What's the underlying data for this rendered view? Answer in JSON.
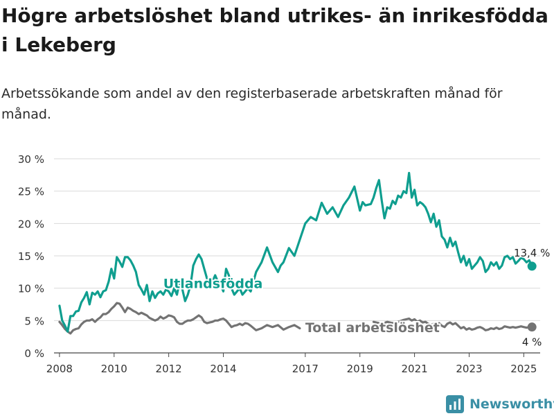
{
  "header": {
    "title": "Högre arbetslöshet bland utrikes- än inrikesfödda i Lekeberg",
    "subtitle": "Arbetssökande som andel av den registerbaserade arbetskraften månad för månad."
  },
  "brand": {
    "name": "Newsworthy",
    "icon": "newsworthy-chart-icon",
    "color": "#3a8fa5"
  },
  "chart_data": {
    "type": "line",
    "ylim": [
      0,
      30
    ],
    "xlim": [
      2007.8,
      2025.6
    ],
    "y_ticks": [
      0,
      5,
      10,
      15,
      20,
      25,
      30
    ],
    "y_tick_labels": [
      "0 %",
      "5 %",
      "10 %",
      "15 %",
      "20 %",
      "25 %",
      "30 %"
    ],
    "x_ticks": [
      2008,
      2010,
      2012,
      2014,
      2017,
      2019,
      2021,
      2023,
      2025
    ],
    "x_tick_labels": [
      "2008",
      "2010",
      "2012",
      "2014",
      "2017",
      "2019",
      "2021",
      "2023",
      "2025"
    ],
    "grid": true,
    "series": [
      {
        "name": "Utlandsfödda",
        "color": "#0f9e8f",
        "end_label": "13,4 %",
        "points": [
          [
            2008.0,
            7.3
          ],
          [
            2008.1,
            5.0
          ],
          [
            2008.2,
            4.2
          ],
          [
            2008.3,
            3.3
          ],
          [
            2008.4,
            5.7
          ],
          [
            2008.5,
            5.7
          ],
          [
            2008.6,
            6.4
          ],
          [
            2008.7,
            6.5
          ],
          [
            2008.8,
            7.8
          ],
          [
            2008.9,
            8.5
          ],
          [
            2009.0,
            9.4
          ],
          [
            2009.1,
            7.5
          ],
          [
            2009.2,
            9.3
          ],
          [
            2009.3,
            9.0
          ],
          [
            2009.4,
            9.5
          ],
          [
            2009.5,
            8.6
          ],
          [
            2009.6,
            9.5
          ],
          [
            2009.7,
            9.7
          ],
          [
            2009.8,
            11.0
          ],
          [
            2009.9,
            13.0
          ],
          [
            2010.0,
            11.5
          ],
          [
            2010.1,
            14.8
          ],
          [
            2010.2,
            14.1
          ],
          [
            2010.3,
            13.3
          ],
          [
            2010.4,
            14.8
          ],
          [
            2010.5,
            14.8
          ],
          [
            2010.6,
            14.3
          ],
          [
            2010.7,
            13.5
          ],
          [
            2010.8,
            12.5
          ],
          [
            2010.9,
            10.5
          ],
          [
            2011.0,
            9.8
          ],
          [
            2011.1,
            9.0
          ],
          [
            2011.2,
            10.5
          ],
          [
            2011.3,
            8.0
          ],
          [
            2011.4,
            9.5
          ],
          [
            2011.5,
            8.5
          ],
          [
            2011.6,
            9.2
          ],
          [
            2011.7,
            9.5
          ],
          [
            2011.8,
            9.0
          ],
          [
            2011.9,
            9.8
          ],
          [
            2012.0,
            9.5
          ],
          [
            2012.1,
            8.8
          ],
          [
            2012.2,
            10.0
          ],
          [
            2012.3,
            9.0
          ],
          [
            2012.4,
            11.0
          ],
          [
            2012.5,
            9.8
          ],
          [
            2012.6,
            8.0
          ],
          [
            2012.7,
            9.0
          ],
          [
            2012.8,
            10.5
          ],
          [
            2012.9,
            13.5
          ],
          [
            2013.0,
            14.5
          ],
          [
            2013.1,
            15.2
          ],
          [
            2013.2,
            14.5
          ],
          [
            2013.3,
            13.0
          ],
          [
            2013.4,
            11.5
          ],
          [
            2013.5,
            10.0
          ],
          [
            2013.6,
            11.0
          ],
          [
            2013.7,
            12.0
          ],
          [
            2013.8,
            11.0
          ],
          [
            2013.9,
            10.5
          ],
          [
            2014.0,
            9.5
          ],
          [
            2014.1,
            13.0
          ],
          [
            2014.2,
            12.0
          ],
          [
            2014.3,
            10.0
          ],
          [
            2014.4,
            9.0
          ],
          [
            2014.5,
            9.5
          ],
          [
            2014.6,
            10.0
          ],
          [
            2014.7,
            9.0
          ],
          [
            2014.8,
            9.5
          ],
          [
            2014.9,
            10.0
          ],
          [
            2015.0,
            9.5
          ],
          [
            2015.2,
            12.5
          ],
          [
            2015.4,
            14.0
          ],
          [
            2015.6,
            16.3
          ],
          [
            2015.8,
            14.0
          ],
          [
            2016.0,
            12.5
          ],
          [
            2016.1,
            13.5
          ],
          [
            2016.2,
            14.0
          ],
          [
            2016.4,
            16.2
          ],
          [
            2016.6,
            15.0
          ],
          [
            2016.8,
            17.5
          ],
          [
            2017.0,
            20.0
          ],
          [
            2017.2,
            21.0
          ],
          [
            2017.4,
            20.5
          ],
          [
            2017.6,
            23.2
          ],
          [
            2017.8,
            21.5
          ],
          [
            2018.0,
            22.5
          ],
          [
            2018.2,
            21.0
          ],
          [
            2018.4,
            22.8
          ],
          [
            2018.6,
            24.0
          ],
          [
            2018.8,
            25.7
          ],
          [
            2019.0,
            22.0
          ],
          [
            2019.1,
            23.3
          ],
          [
            2019.2,
            22.8
          ],
          [
            2019.4,
            23.0
          ],
          [
            2019.5,
            24.0
          ],
          [
            2019.6,
            25.5
          ],
          [
            2019.7,
            26.7
          ],
          [
            2019.8,
            23.5
          ],
          [
            2019.9,
            20.8
          ],
          [
            2020.0,
            22.5
          ],
          [
            2020.1,
            22.3
          ],
          [
            2020.2,
            23.5
          ],
          [
            2020.3,
            23.0
          ],
          [
            2020.4,
            24.3
          ],
          [
            2020.5,
            24.0
          ],
          [
            2020.6,
            25.0
          ],
          [
            2020.7,
            24.7
          ],
          [
            2020.8,
            27.8
          ],
          [
            2020.9,
            24.0
          ],
          [
            2021.0,
            25.2
          ],
          [
            2021.1,
            22.8
          ],
          [
            2021.2,
            23.3
          ],
          [
            2021.3,
            23.0
          ],
          [
            2021.4,
            22.5
          ],
          [
            2021.5,
            21.5
          ],
          [
            2021.6,
            20.2
          ],
          [
            2021.7,
            21.5
          ],
          [
            2021.8,
            19.5
          ],
          [
            2021.9,
            20.5
          ],
          [
            2022.0,
            18.0
          ],
          [
            2022.1,
            17.5
          ],
          [
            2022.2,
            16.3
          ],
          [
            2022.3,
            17.8
          ],
          [
            2022.4,
            16.5
          ],
          [
            2022.5,
            17.2
          ],
          [
            2022.6,
            15.5
          ],
          [
            2022.7,
            14.0
          ],
          [
            2022.8,
            15.0
          ],
          [
            2022.9,
            13.5
          ],
          [
            2023.0,
            14.5
          ],
          [
            2023.1,
            13.0
          ],
          [
            2023.2,
            13.5
          ],
          [
            2023.3,
            14.0
          ],
          [
            2023.4,
            14.8
          ],
          [
            2023.5,
            14.2
          ],
          [
            2023.6,
            12.5
          ],
          [
            2023.7,
            13.0
          ],
          [
            2023.8,
            14.0
          ],
          [
            2023.9,
            13.5
          ],
          [
            2024.0,
            14.0
          ],
          [
            2024.1,
            13.0
          ],
          [
            2024.2,
            13.5
          ],
          [
            2024.3,
            14.8
          ],
          [
            2024.4,
            15.0
          ],
          [
            2024.5,
            14.5
          ],
          [
            2024.6,
            14.8
          ],
          [
            2024.7,
            13.8
          ],
          [
            2024.8,
            14.2
          ],
          [
            2024.9,
            14.7
          ],
          [
            2025.0,
            14.5
          ],
          [
            2025.1,
            14.0
          ],
          [
            2025.2,
            14.3
          ],
          [
            2025.3,
            13.4
          ]
        ]
      },
      {
        "name": "Total arbetslöshet",
        "color": "#737373",
        "end_label": "4 %",
        "points": [
          [
            2008.0,
            4.8
          ],
          [
            2008.1,
            4.3
          ],
          [
            2008.2,
            3.7
          ],
          [
            2008.3,
            3.3
          ],
          [
            2008.4,
            3.0
          ],
          [
            2008.5,
            3.5
          ],
          [
            2008.6,
            3.7
          ],
          [
            2008.7,
            3.8
          ],
          [
            2008.8,
            4.4
          ],
          [
            2008.9,
            4.8
          ],
          [
            2009.0,
            5.0
          ],
          [
            2009.1,
            5.0
          ],
          [
            2009.2,
            5.2
          ],
          [
            2009.3,
            4.8
          ],
          [
            2009.4,
            5.2
          ],
          [
            2009.5,
            5.5
          ],
          [
            2009.6,
            6.0
          ],
          [
            2009.7,
            6.0
          ],
          [
            2009.8,
            6.3
          ],
          [
            2009.9,
            6.8
          ],
          [
            2010.0,
            7.2
          ],
          [
            2010.1,
            7.7
          ],
          [
            2010.2,
            7.6
          ],
          [
            2010.3,
            7.0
          ],
          [
            2010.4,
            6.3
          ],
          [
            2010.5,
            7.0
          ],
          [
            2010.6,
            6.8
          ],
          [
            2010.7,
            6.5
          ],
          [
            2010.8,
            6.3
          ],
          [
            2010.9,
            6.0
          ],
          [
            2011.0,
            6.2
          ],
          [
            2011.1,
            6.0
          ],
          [
            2011.2,
            5.8
          ],
          [
            2011.3,
            5.4
          ],
          [
            2011.4,
            5.2
          ],
          [
            2011.5,
            5.0
          ],
          [
            2011.6,
            5.2
          ],
          [
            2011.7,
            5.6
          ],
          [
            2011.8,
            5.3
          ],
          [
            2011.9,
            5.5
          ],
          [
            2012.0,
            5.8
          ],
          [
            2012.1,
            5.7
          ],
          [
            2012.2,
            5.5
          ],
          [
            2012.3,
            4.8
          ],
          [
            2012.4,
            4.5
          ],
          [
            2012.5,
            4.5
          ],
          [
            2012.6,
            4.8
          ],
          [
            2012.7,
            5.0
          ],
          [
            2012.8,
            5.0
          ],
          [
            2012.9,
            5.2
          ],
          [
            2013.0,
            5.5
          ],
          [
            2013.1,
            5.8
          ],
          [
            2013.2,
            5.5
          ],
          [
            2013.3,
            4.8
          ],
          [
            2013.4,
            4.6
          ],
          [
            2013.5,
            4.7
          ],
          [
            2013.6,
            4.8
          ],
          [
            2013.7,
            5.0
          ],
          [
            2013.8,
            5.0
          ],
          [
            2013.9,
            5.2
          ],
          [
            2014.0,
            5.3
          ],
          [
            2014.1,
            5.0
          ],
          [
            2014.2,
            4.5
          ],
          [
            2014.3,
            4.0
          ],
          [
            2014.4,
            4.2
          ],
          [
            2014.5,
            4.3
          ],
          [
            2014.6,
            4.5
          ],
          [
            2014.7,
            4.3
          ],
          [
            2014.8,
            4.6
          ],
          [
            2014.9,
            4.5
          ],
          [
            2015.0,
            4.2
          ],
          [
            2015.2,
            3.5
          ],
          [
            2015.4,
            3.8
          ],
          [
            2015.6,
            4.3
          ],
          [
            2015.8,
            4.0
          ],
          [
            2016.0,
            4.3
          ],
          [
            2016.2,
            3.6
          ],
          [
            2016.4,
            4.0
          ],
          [
            2016.6,
            4.3
          ],
          [
            2016.8,
            3.8
          ],
          [
            2019.5,
            4.8
          ],
          [
            2019.8,
            4.5
          ],
          [
            2020.0,
            4.8
          ],
          [
            2020.2,
            4.6
          ],
          [
            2020.4,
            4.8
          ],
          [
            2020.6,
            5.1
          ],
          [
            2020.8,
            5.3
          ],
          [
            2020.9,
            5.0
          ],
          [
            2021.0,
            5.2
          ],
          [
            2021.1,
            4.8
          ],
          [
            2021.2,
            5.0
          ],
          [
            2021.3,
            4.7
          ],
          [
            2021.4,
            4.8
          ],
          [
            2021.5,
            4.5
          ],
          [
            2021.6,
            4.3
          ],
          [
            2021.7,
            4.5
          ],
          [
            2021.8,
            4.4
          ],
          [
            2021.9,
            4.6
          ],
          [
            2022.0,
            4.2
          ],
          [
            2022.1,
            4.0
          ],
          [
            2022.2,
            4.5
          ],
          [
            2022.3,
            4.7
          ],
          [
            2022.4,
            4.4
          ],
          [
            2022.5,
            4.6
          ],
          [
            2022.6,
            4.2
          ],
          [
            2022.7,
            3.8
          ],
          [
            2022.8,
            4.0
          ],
          [
            2022.9,
            3.6
          ],
          [
            2023.0,
            3.8
          ],
          [
            2023.1,
            3.6
          ],
          [
            2023.2,
            3.7
          ],
          [
            2023.3,
            3.9
          ],
          [
            2023.4,
            4.0
          ],
          [
            2023.5,
            3.8
          ],
          [
            2023.6,
            3.5
          ],
          [
            2023.7,
            3.6
          ],
          [
            2023.8,
            3.8
          ],
          [
            2023.9,
            3.7
          ],
          [
            2024.0,
            3.9
          ],
          [
            2024.1,
            3.7
          ],
          [
            2024.2,
            3.8
          ],
          [
            2024.3,
            4.1
          ],
          [
            2024.4,
            4.0
          ],
          [
            2024.5,
            3.9
          ],
          [
            2024.6,
            4.0
          ],
          [
            2024.7,
            3.9
          ],
          [
            2024.8,
            4.0
          ],
          [
            2024.9,
            4.1
          ],
          [
            2025.0,
            4.0
          ],
          [
            2025.1,
            3.9
          ],
          [
            2025.2,
            4.0
          ],
          [
            2025.3,
            4.0
          ]
        ]
      }
    ]
  }
}
